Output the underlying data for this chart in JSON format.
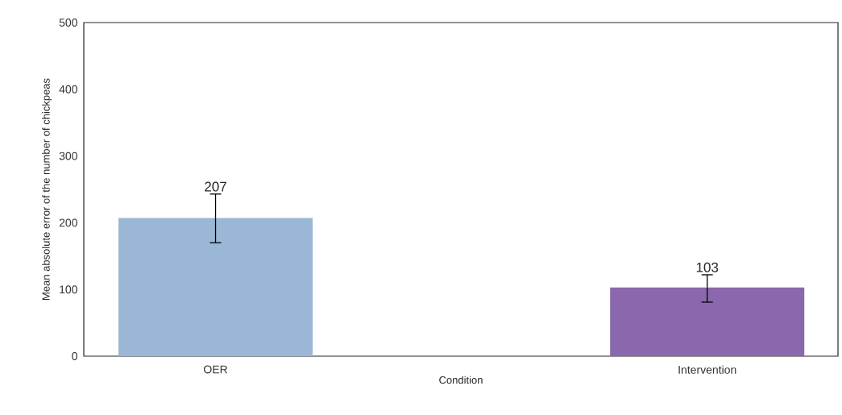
{
  "chart_data": {
    "type": "bar",
    "xlabel": "Condition",
    "ylabel": "Mean absolute error of the number of chickpeas",
    "categories": [
      "OER",
      "Intervention"
    ],
    "values": [
      207,
      103
    ],
    "colors": [
      "#9bb7d6",
      "#8b68ad"
    ],
    "errors": [
      [
        170,
        243
      ],
      [
        81,
        122
      ]
    ],
    "data_labels": true,
    "ylim": [
      0,
      500
    ],
    "yticks": [
      0,
      100,
      200,
      300,
      400,
      500
    ],
    "grid": false
  }
}
